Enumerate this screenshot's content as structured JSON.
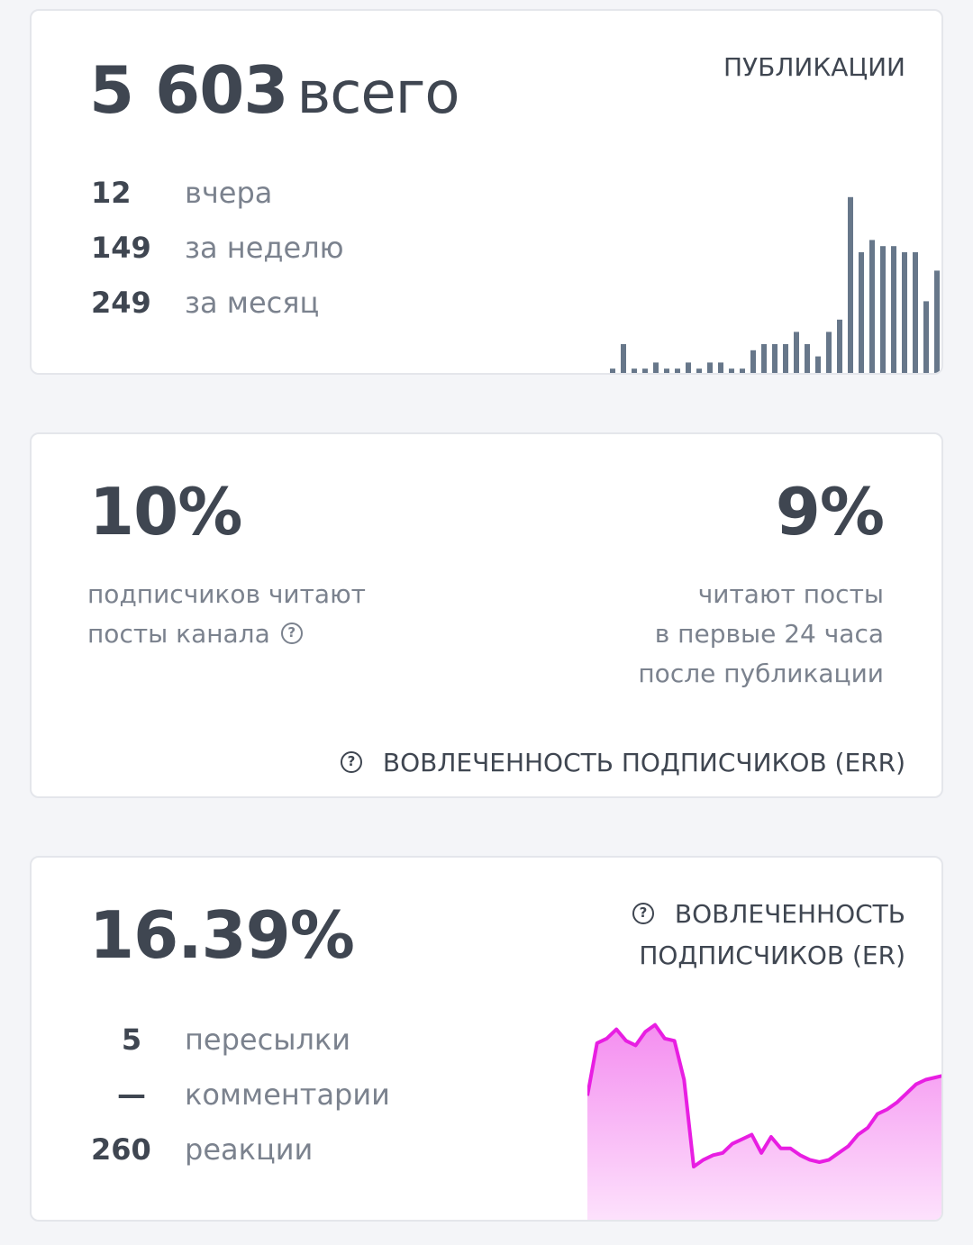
{
  "publications": {
    "total_number": "5 603",
    "total_suffix": "всего",
    "section_label": "ПУБЛИКАЦИИ",
    "stats": [
      {
        "value": "12",
        "label": "вчера"
      },
      {
        "value": "149",
        "label": "за неделю"
      },
      {
        "value": "249",
        "label": "за месяц"
      }
    ],
    "bar_color": "#67778a"
  },
  "reach": {
    "left_value": "10%",
    "left_desc": [
      "подписчиков читают",
      "посты канала"
    ],
    "right_value": "9%",
    "right_desc": [
      "читают посты",
      "в первые 24 часа",
      "после публикации"
    ],
    "footer_label": "ВОВЛЕЧЕННОСТЬ ПОДПИСЧИКОВ (ERR)",
    "help_glyph": "?"
  },
  "engagement": {
    "value": "16.39%",
    "label_line1": "ВОВЛЕЧЕННОСТЬ",
    "label_line2": "ПОДПИСЧИКОВ (ER)",
    "stats": [
      {
        "value": "5",
        "label": "пересылки"
      },
      {
        "value": "—",
        "label": "комментарии"
      },
      {
        "value": "260",
        "label": "реакции"
      }
    ],
    "line_color": "#e81ee2",
    "fill_top": "#f48ef0",
    "fill_bottom": "#fde2fc"
  },
  "chart_data": [
    {
      "type": "bar",
      "values": [
        2,
        10,
        2,
        2,
        4,
        2,
        2,
        4,
        2,
        4,
        4,
        2,
        2,
        8,
        10,
        10,
        10,
        14,
        10,
        6,
        14,
        18,
        58,
        40,
        44,
        42,
        42,
        40,
        40,
        24,
        34
      ]
    },
    {
      "type": "area",
      "values": [
        55,
        78,
        80,
        84,
        79,
        77,
        83,
        86,
        80,
        79,
        62,
        24,
        27,
        29,
        30,
        34,
        36,
        38,
        30,
        37,
        32,
        32,
        29,
        27,
        26,
        27,
        30,
        33,
        38,
        41,
        47,
        49,
        52,
        56,
        60,
        62,
        63,
        64
      ]
    }
  ]
}
